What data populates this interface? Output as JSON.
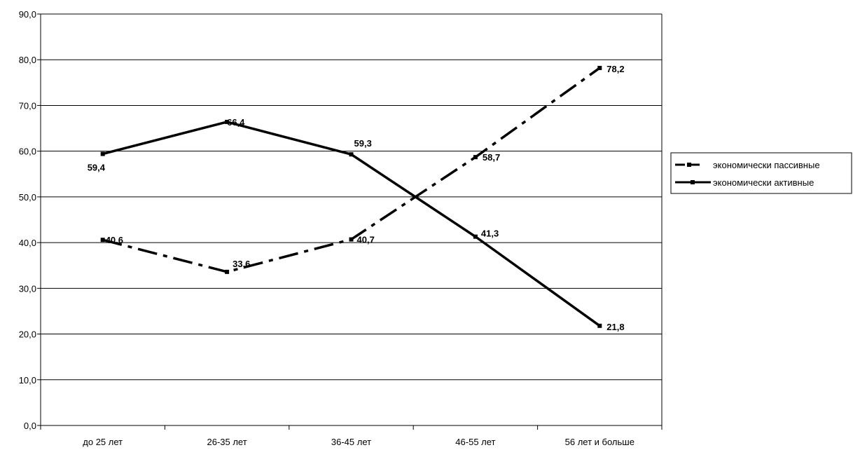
{
  "chart_data": {
    "type": "line",
    "categories": [
      "до 25 лет",
      "26-35 лет",
      "36-45 лет",
      "46-55 лет",
      "56 лет и больше"
    ],
    "ylim": [
      0,
      90
    ],
    "y_ticks": [
      "0,0",
      "10,0",
      "20,0",
      "30,0",
      "40,0",
      "50,0",
      "60,0",
      "70,0",
      "80,0",
      "90,0"
    ],
    "grid": "horizontal",
    "legend_position": "right",
    "series": [
      {
        "name": "экономически пассивные",
        "values": [
          40.6,
          33.6,
          40.7,
          58.7,
          78.2
        ],
        "labels": [
          "40,6",
          "33,6",
          "40,7",
          "58,7",
          "78,2"
        ],
        "style": "dash-dot",
        "color": "#000000"
      },
      {
        "name": "экономически активные",
        "values": [
          59.4,
          66.4,
          59.3,
          41.3,
          21.8
        ],
        "labels": [
          "59,4",
          "66,4",
          "59,3",
          "41,3",
          "21,8"
        ],
        "style": "solid",
        "color": "#000000"
      }
    ]
  }
}
